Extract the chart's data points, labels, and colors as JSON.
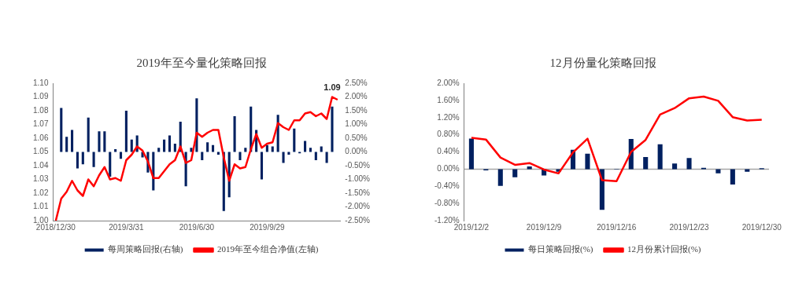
{
  "chart_data": [
    {
      "type": "bar",
      "title": "2019年至今量化策略回报",
      "categories": [
        "2018/12/30",
        null,
        null,
        null,
        null,
        null,
        null,
        null,
        null,
        null,
        null,
        null,
        null,
        "2019/3/31",
        null,
        null,
        null,
        null,
        null,
        null,
        null,
        null,
        null,
        null,
        null,
        null,
        "2019/6/30",
        null,
        null,
        null,
        null,
        null,
        null,
        null,
        null,
        null,
        null,
        null,
        null,
        "2019/9/29",
        null,
        null,
        null,
        null,
        null,
        null,
        null,
        null,
        null,
        null,
        null,
        null,
        null
      ],
      "series": [
        {
          "name": "每周策略回报(右轴)",
          "axis": "y2",
          "color": "#002060",
          "values": [
            null,
            1.6,
            0.55,
            0.8,
            -0.6,
            -0.45,
            1.25,
            -0.55,
            0.75,
            0.75,
            -0.9,
            0.1,
            -0.25,
            1.5,
            0.45,
            0.6,
            -0.2,
            -0.75,
            -1.4,
            0.15,
            0.45,
            0.6,
            0.3,
            1.1,
            -1.25,
            0.15,
            1.95,
            -0.3,
            0.35,
            0.25,
            -0.1,
            -2.15,
            -1.65,
            1.3,
            -0.3,
            0.15,
            1.65,
            0.8,
            -1.0,
            0.25,
            0.2,
            1.35,
            -0.4,
            -0.1,
            0.85,
            -0.05,
            0.4,
            0.15,
            -0.3,
            0.2,
            -0.4,
            1.65,
            null
          ]
        },
        {
          "name": "2019年至今组合净值(左轴)",
          "type": "line",
          "color": "#ff0000",
          "values": [
            1.0,
            1.016,
            1.021,
            1.029,
            1.022,
            1.018,
            1.03,
            1.025,
            1.033,
            1.039,
            1.03,
            1.031,
            1.029,
            1.044,
            1.048,
            1.054,
            1.051,
            1.043,
            1.031,
            1.031,
            1.036,
            1.041,
            1.044,
            1.054,
            1.042,
            1.044,
            1.064,
            1.061,
            1.064,
            1.066,
            1.066,
            1.046,
            1.029,
            1.041,
            1.038,
            1.039,
            1.052,
            1.063,
            1.053,
            1.056,
            1.057,
            1.071,
            1.068,
            1.066,
            1.073,
            1.073,
            1.078,
            1.079,
            1.076,
            1.078,
            1.074,
            1.09,
            1.088
          ],
          "value_labels": [
            null,
            null,
            null,
            null,
            null,
            null,
            null,
            null,
            null,
            null,
            null,
            null,
            null,
            null,
            null,
            null,
            null,
            null,
            null,
            null,
            null,
            null,
            null,
            null,
            null,
            null,
            null,
            null,
            null,
            null,
            null,
            null,
            null,
            null,
            null,
            null,
            null,
            null,
            null,
            null,
            null,
            null,
            null,
            null,
            null,
            null,
            null,
            null,
            null,
            null,
            null,
            "1.09",
            null
          ]
        }
      ],
      "ylim": [
        1.0,
        1.1
      ],
      "yticks": [
        {
          "value": 1.0,
          "label": "1.00"
        },
        {
          "value": 1.01,
          "label": "1.01"
        },
        {
          "value": 1.02,
          "label": "1.02"
        },
        {
          "value": 1.03,
          "label": "1.03"
        },
        {
          "value": 1.04,
          "label": "1.04"
        },
        {
          "value": 1.05,
          "label": "1.05"
        },
        {
          "value": 1.06,
          "label": "1.06"
        },
        {
          "value": 1.07,
          "label": "1.07"
        },
        {
          "value": 1.08,
          "label": "1.08"
        },
        {
          "value": 1.09,
          "label": "1.09"
        },
        {
          "value": 1.1,
          "label": "1.10"
        }
      ],
      "y2lim": [
        -2.5,
        2.5
      ],
      "y2ticks": [
        {
          "value": -2.5,
          "label": "-2.50%"
        },
        {
          "value": -2.0,
          "label": "-2.00%"
        },
        {
          "value": -1.5,
          "label": "-1.50%"
        },
        {
          "value": -1.0,
          "label": "-1.00%"
        },
        {
          "value": -0.5,
          "label": "-0.50%"
        },
        {
          "value": 0,
          "label": "0.00%"
        },
        {
          "value": 0.5,
          "label": "0.50%"
        },
        {
          "value": 1.0,
          "label": "1.00%"
        },
        {
          "value": 1.5,
          "label": "1.50%"
        },
        {
          "value": 2.0,
          "label": "2.00%"
        },
        {
          "value": 2.5,
          "label": "2.50%"
        }
      ],
      "grid": false,
      "legend": "bottom"
    },
    {
      "type": "bar",
      "title": "12月份量化策略回报",
      "categories": [
        "2019/12/2",
        null,
        null,
        null,
        null,
        "2019/12/9",
        null,
        null,
        null,
        null,
        "2019/12/16",
        null,
        null,
        null,
        null,
        "2019/12/23",
        null,
        null,
        null,
        null,
        "2019/12/30"
      ],
      "series": [
        {
          "name": "每日策略回报(%)",
          "color": "#002060",
          "values": [
            0.71,
            -0.03,
            -0.39,
            -0.19,
            0.06,
            -0.15,
            -0.06,
            0.45,
            0.36,
            -0.95,
            -0.01,
            0.7,
            0.28,
            0.58,
            0.13,
            0.26,
            0.03,
            -0.1,
            -0.36,
            -0.06,
            0.02
          ]
        },
        {
          "name": "12月份累计回报(%)",
          "type": "line",
          "color": "#ff0000",
          "values": [
            0.73,
            0.69,
            0.27,
            0.1,
            0.14,
            -0.01,
            -0.1,
            0.39,
            0.71,
            -0.26,
            -0.28,
            0.4,
            0.68,
            1.27,
            1.42,
            1.65,
            1.69,
            1.59,
            1.21,
            1.13,
            1.15
          ]
        }
      ],
      "ylim": [
        -1.2,
        2.0
      ],
      "yticks": [
        {
          "value": -1.2,
          "label": "-1.20%"
        },
        {
          "value": -0.8,
          "label": "-0.80%"
        },
        {
          "value": -0.4,
          "label": "-0.40%"
        },
        {
          "value": 0,
          "label": "0.00%"
        },
        {
          "value": 0.4,
          "label": "0.40%"
        },
        {
          "value": 0.8,
          "label": "0.80%"
        },
        {
          "value": 1.2,
          "label": "1.20%"
        },
        {
          "value": 1.6,
          "label": "1.60%"
        },
        {
          "value": 2.0,
          "label": "2.00%"
        }
      ],
      "ref_lines": [
        {
          "axis": "y",
          "value": 0,
          "color": "#a6a6a6"
        }
      ],
      "grid": false,
      "legend": "bottom"
    }
  ]
}
